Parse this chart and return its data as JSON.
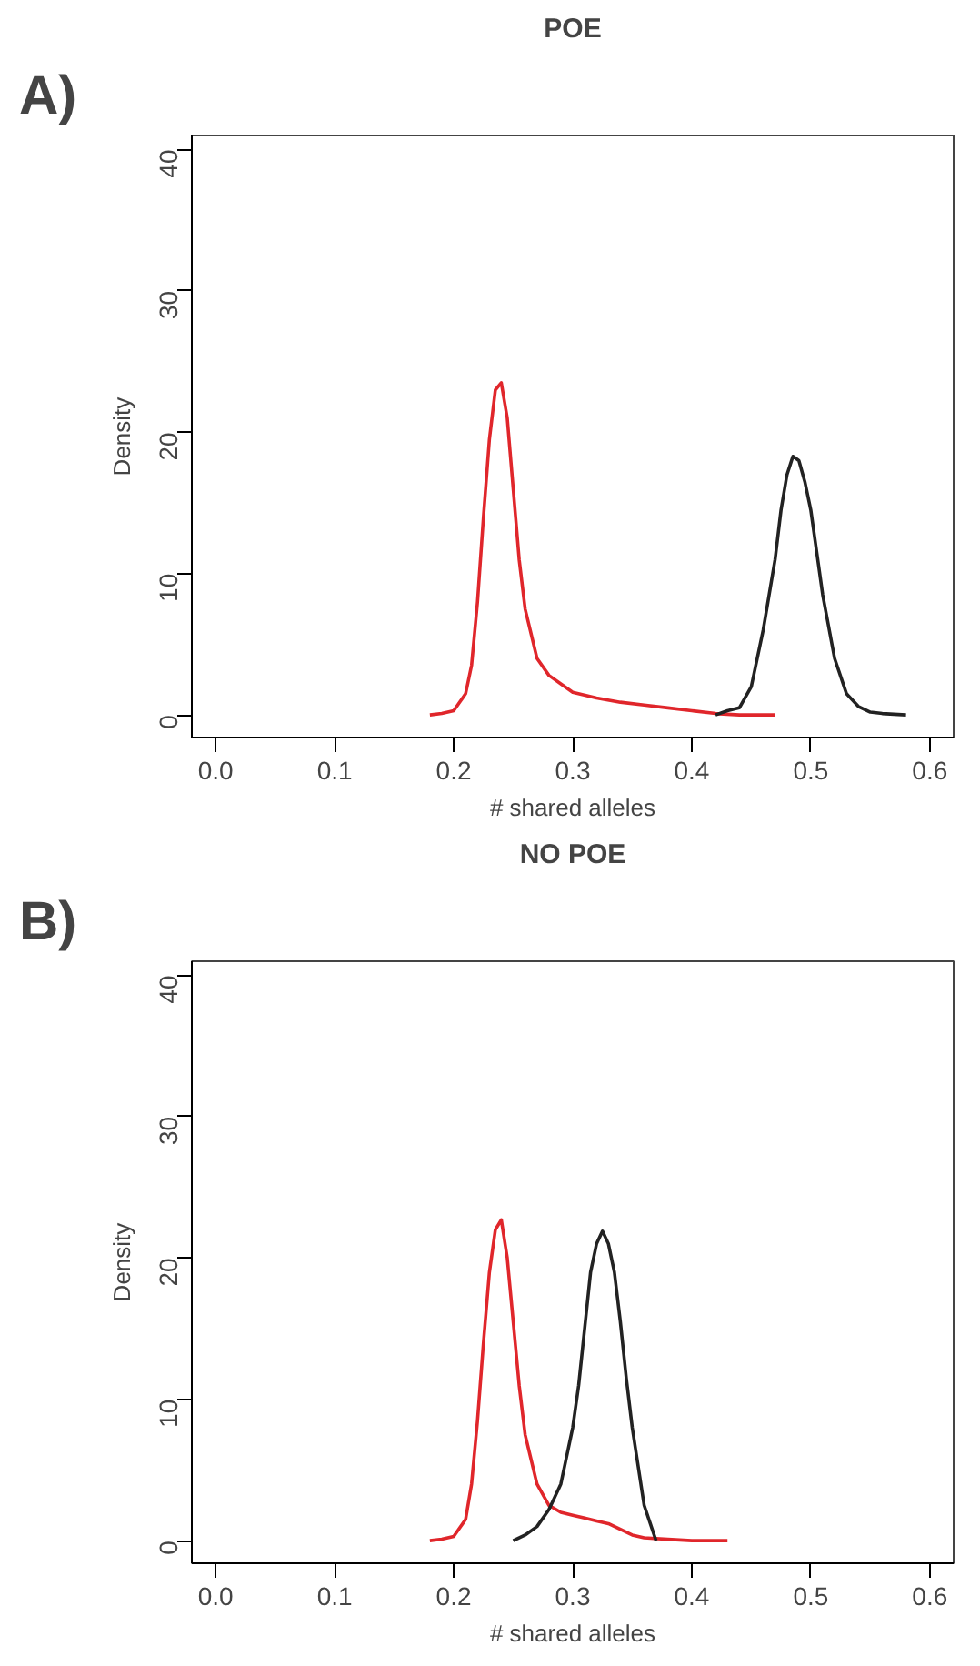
{
  "chart_data": [
    {
      "type": "line",
      "title": "POE",
      "annotations": [
        "A)"
      ],
      "xlabel": "# shared alleles",
      "ylabel": "Density",
      "xlim": [
        -0.02,
        0.62
      ],
      "ylim": [
        -1.6,
        41
      ],
      "xticks": [
        {
          "value": 0,
          "label": "0.0"
        },
        0.1,
        0.2,
        0.3,
        0.4,
        0.5,
        0.6
      ],
      "yticks": [
        0,
        10,
        20,
        30,
        40
      ],
      "grid": false,
      "series": [
        {
          "color": "#e0262b",
          "x": [
            0.18,
            0.19,
            0.2,
            0.21,
            0.215,
            0.22,
            0.225,
            0.23,
            0.235,
            0.24,
            0.245,
            0.25,
            0.255,
            0.26,
            0.27,
            0.28,
            0.29,
            0.3,
            0.32,
            0.34,
            0.36,
            0.38,
            0.4,
            0.42,
            0.44,
            0.47
          ],
          "values": [
            0,
            0.1,
            0.3,
            1.5,
            3.5,
            8,
            14,
            19.5,
            23,
            23.5,
            21,
            16,
            11,
            7.5,
            4,
            2.8,
            2.2,
            1.6,
            1.2,
            0.9,
            0.7,
            0.5,
            0.3,
            0.1,
            0,
            0
          ]
        },
        {
          "color": "#222222",
          "x": [
            0.42,
            0.43,
            0.44,
            0.45,
            0.46,
            0.47,
            0.475,
            0.48,
            0.485,
            0.49,
            0.495,
            0.5,
            0.51,
            0.52,
            0.53,
            0.54,
            0.55,
            0.56,
            0.58
          ],
          "values": [
            0,
            0.3,
            0.5,
            2,
            6,
            11,
            14.5,
            17,
            18.3,
            18,
            16.5,
            14.5,
            8.5,
            4,
            1.5,
            0.6,
            0.2,
            0.1,
            0
          ]
        }
      ]
    },
    {
      "type": "line",
      "title": "NO POE",
      "annotations": [
        "B)"
      ],
      "xlabel": "# shared alleles",
      "ylabel": "Density",
      "xlim": [
        -0.02,
        0.62
      ],
      "ylim": [
        -1.6,
        41
      ],
      "xticks": [
        {
          "value": 0,
          "label": "0.0"
        },
        0.1,
        0.2,
        0.3,
        0.4,
        0.5,
        0.6
      ],
      "yticks": [
        0,
        10,
        20,
        30,
        40
      ],
      "grid": false,
      "series": [
        {
          "color": "#e0262b",
          "x": [
            0.18,
            0.19,
            0.2,
            0.21,
            0.215,
            0.22,
            0.225,
            0.23,
            0.235,
            0.24,
            0.245,
            0.25,
            0.255,
            0.26,
            0.27,
            0.28,
            0.29,
            0.3,
            0.31,
            0.32,
            0.33,
            0.34,
            0.35,
            0.36,
            0.38,
            0.4,
            0.43
          ],
          "values": [
            0,
            0.1,
            0.3,
            1.5,
            4,
            8.5,
            14,
            19,
            22,
            22.7,
            20,
            15.5,
            11,
            7.5,
            4,
            2.5,
            2,
            1.8,
            1.6,
            1.4,
            1.2,
            0.8,
            0.4,
            0.2,
            0.1,
            0,
            0
          ]
        },
        {
          "color": "#222222",
          "x": [
            0.25,
            0.26,
            0.27,
            0.28,
            0.29,
            0.3,
            0.305,
            0.31,
            0.315,
            0.32,
            0.325,
            0.33,
            0.335,
            0.34,
            0.345,
            0.35,
            0.36,
            0.37
          ],
          "values": [
            0,
            0.4,
            1,
            2.2,
            4,
            8,
            11,
            15,
            19,
            21,
            21.9,
            21,
            19,
            15.5,
            11.5,
            8,
            2.5,
            0
          ]
        }
      ]
    }
  ]
}
